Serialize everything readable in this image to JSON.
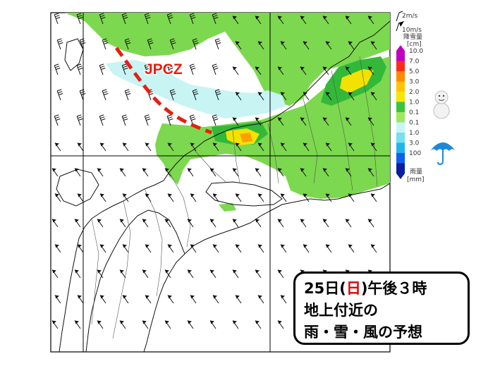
{
  "map": {
    "front_label": "JPCZ",
    "wind_scale": {
      "short_barb": "2m/s",
      "long_barb": "10m/s"
    },
    "legend": {
      "snow_title": "降雪量",
      "snow_unit": "[cm]",
      "rain_title": "雨量",
      "rain_unit": "[mm]",
      "snow_ticks": [
        "10.0",
        "7.0",
        "5.0",
        "3.0",
        "2.0",
        "1.0",
        "0.1"
      ],
      "rain_ticks": [
        "0.1",
        "1.0",
        "3.0",
        "100"
      ],
      "snow_colors": [
        "#c000c0",
        "#ff2a1a",
        "#ff8a00",
        "#ffc400",
        "#f6e600",
        "#39c63a",
        "#9ee860"
      ],
      "rain_colors": [
        "#c6f6f6",
        "#74e0f0",
        "#23b4ec",
        "#0e5ff0",
        "#0a1ea0"
      ],
      "snow_icon": "snowman-icon",
      "rain_icon": "umbrella-icon"
    }
  },
  "caption": {
    "line1_prefix": "25日(",
    "line1_day": "日",
    "line1_suffix": ")午後３時",
    "line2": "地上付近の",
    "line3": "雨・雪・風の予想"
  }
}
